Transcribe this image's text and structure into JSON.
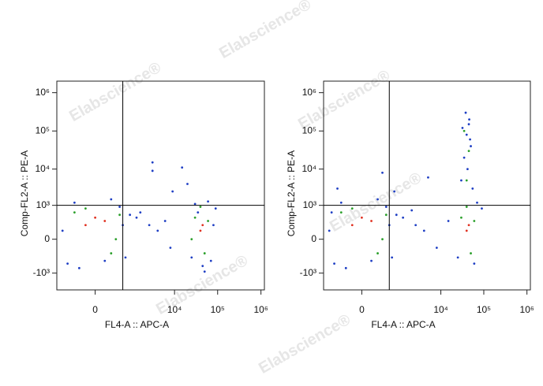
{
  "watermark": "Elabscience®",
  "chart_data": [
    {
      "type": "scatter",
      "xlabel": "FL4-A :: APC-A",
      "ylabel": "Comp-FL2-A :: PE-A",
      "xscale": "biexponential",
      "yscale": "biexponential",
      "xlim": [
        -1000,
        1200000
      ],
      "ylim": [
        -3000,
        2000000
      ],
      "xticks": [
        0,
        {
          "value": 10000,
          "label": "10⁴"
        },
        {
          "value": 100000,
          "label": "10⁵"
        },
        {
          "value": 1000000,
          "label": "10⁶"
        }
      ],
      "yticks": [
        {
          "value": -1000,
          "label": "-10³"
        },
        0,
        {
          "value": 1000,
          "label": "10³"
        },
        {
          "value": 10000,
          "label": "10⁴"
        },
        {
          "value": 100000,
          "label": "10⁵"
        },
        {
          "value": 1000000,
          "label": "10⁶"
        }
      ],
      "gate": {
        "x": 500,
        "y": 1000
      },
      "series": [
        {
          "color": "#1f3fc4",
          "x": [
            -500,
            -300,
            400,
            600,
            -200,
            800,
            200,
            -700,
            100,
            500,
            1200,
            2500,
            4000,
            6000,
            8000,
            1500,
            3000,
            15000,
            20000,
            70000,
            90000,
            25000,
            30000,
            60000,
            45000,
            35000,
            80000,
            50000,
            3000,
            9000
          ],
          "y": [
            -500,
            1200,
            900,
            -300,
            -700,
            500,
            1500,
            100,
            -400,
            200,
            400,
            200,
            100,
            300,
            -100,
            600,
            9000,
            11000,
            4000,
            -400,
            800,
            -300,
            1100,
            1300,
            -600,
            600,
            200,
            -900,
            15000,
            2500
          ]
        },
        {
          "color": "#2ca02c",
          "x": [
            -300,
            200,
            400,
            -100,
            300,
            30000,
            50000,
            60000,
            40000,
            25000
          ],
          "y": [
            600,
            -200,
            500,
            800,
            0,
            400,
            -200,
            300,
            900,
            0
          ]
        },
        {
          "color": "#e03020",
          "x": [
            -100,
            100,
            0,
            40000,
            45000
          ],
          "y": [
            200,
            300,
            400,
            100,
            200
          ]
        }
      ]
    },
    {
      "type": "scatter",
      "xlabel": "FL4-A :: APC-A",
      "ylabel": "Comp-FL2-A :: PE-A",
      "xscale": "biexponential",
      "yscale": "biexponential",
      "xlim": [
        -1000,
        1200000
      ],
      "ylim": [
        -3000,
        2000000
      ],
      "xticks": [
        0,
        {
          "value": 10000,
          "label": "10⁴"
        },
        {
          "value": 100000,
          "label": "10⁵"
        },
        {
          "value": 1000000,
          "label": "10⁶"
        }
      ],
      "yticks": [
        {
          "value": -1000,
          "label": "-10³"
        },
        0,
        {
          "value": 1000,
          "label": "10³"
        },
        {
          "value": 10000,
          "label": "10⁴"
        },
        {
          "value": 100000,
          "label": "10⁵"
        },
        {
          "value": 1000000,
          "label": "10⁶"
        }
      ],
      "gate": {
        "x": 500,
        "y": 1000
      },
      "series": [
        {
          "color": "#1f3fc4",
          "x": [
            -500,
            -300,
            400,
            600,
            -200,
            800,
            200,
            -700,
            100,
            500,
            1200,
            2500,
            4000,
            8000,
            15000,
            30000,
            35000,
            40000,
            45000,
            50000,
            38000,
            42000,
            55000,
            60000,
            90000,
            70000,
            25000,
            48000,
            -400,
            300,
            700,
            -600,
            5000,
            2000,
            32000,
            46000
          ],
          "y": [
            -500,
            1200,
            900,
            -300,
            -700,
            500,
            1500,
            100,
            -400,
            200,
            400,
            200,
            100,
            -100,
            300,
            5000,
            20000,
            80000,
            150000,
            40000,
            300000,
            10000,
            3000,
            -500,
            800,
            1200,
            -300,
            60000,
            3000,
            8000,
            2500,
            600,
            6000,
            700,
            120000,
            200000
          ]
        },
        {
          "color": "#2ca02c",
          "x": [
            -300,
            200,
            400,
            -100,
            300,
            30000,
            50000,
            60000,
            40000,
            45000,
            35000,
            40000
          ],
          "y": [
            600,
            -200,
            500,
            800,
            0,
            400,
            -200,
            300,
            900,
            30000,
            100000,
            5000
          ]
        },
        {
          "color": "#e03020",
          "x": [
            -100,
            100,
            0,
            40000,
            45000
          ],
          "y": [
            200,
            300,
            400,
            100,
            200
          ]
        }
      ]
    }
  ]
}
